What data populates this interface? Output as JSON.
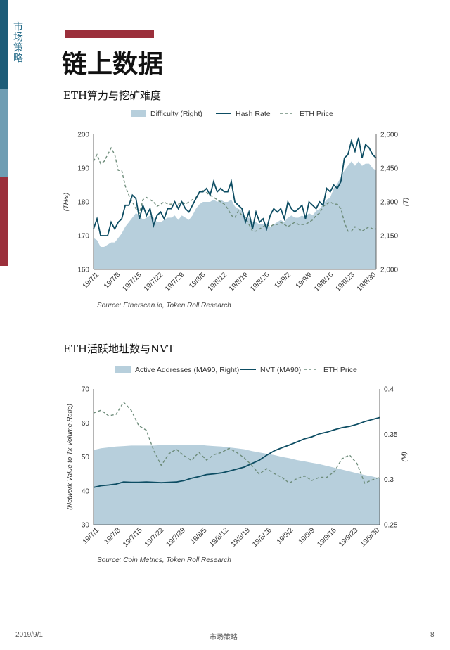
{
  "colors": {
    "bar_top": "#1d5c78",
    "bar_mid": "#6f9db3",
    "bar_bottom": "#9b2f3b",
    "accent": "#9b2f3b",
    "line_dark": "#0d4d63",
    "area": "#b7cfdc",
    "dashed": "#6d8c7a"
  },
  "sidebar": {
    "label": "市场策略"
  },
  "page": {
    "title": "链上数据"
  },
  "footer": {
    "date": "2019/9/1",
    "center": "市场策略",
    "page_number": "8"
  },
  "chart_data": [
    {
      "type": "line",
      "title": "ETH算力与挖矿难度",
      "legend": [
        "Difficulty (Right)",
        "Hash Rate",
        "ETH Price"
      ],
      "ylabel": "(TH/s)",
      "ylabel_right": "(T)",
      "ylim": [
        160,
        200
      ],
      "ylim_right": [
        2000,
        2600
      ],
      "yticks": [
        "200",
        "190",
        "180",
        "170",
        "160"
      ],
      "yticks_right": [
        "2,600",
        "2,450",
        "2,300",
        "2,150",
        "2,000"
      ],
      "xticks": [
        "19/7/1",
        "19/7/8",
        "19/7/15",
        "19/7/22",
        "19/7/29",
        "19/8/5",
        "19/8/12",
        "19/8/19",
        "19/8/26",
        "19/9/2",
        "19/9/9",
        "19/9/16",
        "19/9/23",
        "19/9/30"
      ],
      "source": "Source: Etherscan.io, Token Roll Research",
      "series": [
        {
          "name": "Hash Rate",
          "axis": "left",
          "values": [
            172,
            175,
            170,
            170,
            170,
            174,
            172,
            174,
            175,
            179,
            179,
            182,
            181,
            175,
            179,
            176,
            178,
            173,
            176,
            177,
            175,
            178,
            178,
            180,
            178,
            180,
            178,
            177,
            179,
            181,
            183,
            183,
            184,
            182,
            186,
            183,
            184,
            183,
            183,
            186,
            180,
            179,
            178,
            174,
            177,
            172,
            177,
            174,
            175,
            172,
            176,
            178,
            177,
            178,
            175,
            180,
            178,
            177,
            178,
            179,
            175,
            180,
            179,
            178,
            180,
            179,
            184,
            183,
            185,
            184,
            186,
            193,
            194,
            198,
            195,
            199,
            193,
            197,
            196,
            194,
            193
          ]
        },
        {
          "name": "Difficulty",
          "axis": "right",
          "values": [
            2140,
            2130,
            2100,
            2100,
            2110,
            2120,
            2120,
            2140,
            2160,
            2190,
            2210,
            2230,
            2250,
            2240,
            2220,
            2230,
            2240,
            2230,
            2210,
            2210,
            2220,
            2230,
            2230,
            2240,
            2220,
            2240,
            2230,
            2220,
            2240,
            2270,
            2290,
            2300,
            2300,
            2300,
            2310,
            2300,
            2310,
            2300,
            2300,
            2310,
            2280,
            2270,
            2260,
            2230,
            2230,
            2210,
            2210,
            2200,
            2200,
            2190,
            2190,
            2200,
            2210,
            2220,
            2210,
            2230,
            2240,
            2230,
            2230,
            2240,
            2230,
            2250,
            2240,
            2260,
            2270,
            2290,
            2310,
            2320,
            2360,
            2380,
            2410,
            2440,
            2460,
            2480,
            2460,
            2480,
            2460,
            2470,
            2470,
            2450,
            2440
          ]
        },
        {
          "name": "ETH Price",
          "axis": "right",
          "values": [
            2480,
            2510,
            2470,
            2480,
            2510,
            2540,
            2510,
            2440,
            2440,
            2370,
            2330,
            2300,
            2270,
            2250,
            2310,
            2320,
            2310,
            2300,
            2280,
            2290,
            2300,
            2290,
            2290,
            2300,
            2290,
            2300,
            2290,
            2300,
            2310,
            2320,
            2340,
            2350,
            2340,
            2330,
            2320,
            2310,
            2300,
            2290,
            2270,
            2240,
            2230,
            2260,
            2240,
            2230,
            2200,
            2170,
            2170,
            2180,
            2190,
            2200,
            2190,
            2200,
            2200,
            2210,
            2200,
            2190,
            2200,
            2210,
            2200,
            2200,
            2200,
            2210,
            2220,
            2240,
            2250,
            2280,
            2290,
            2300,
            2290,
            2290,
            2270,
            2210,
            2170,
            2170,
            2190,
            2180,
            2170,
            2180,
            2190,
            2180,
            2180
          ]
        }
      ]
    },
    {
      "type": "line",
      "title": "ETH活跃地址数与NVT",
      "legend": [
        "Active Addresses (MA90, Right)",
        "NVT (MA90)",
        "ETH Price"
      ],
      "ylabel": "(Network Value to Tx Volume Ratio)",
      "ylabel_right": "(M)",
      "ylim": [
        30,
        70
      ],
      "ylim_right": [
        0.25,
        0.4
      ],
      "yticks": [
        "70",
        "60",
        "50",
        "40",
        "30"
      ],
      "yticks_right": [
        "0.4",
        "0.35",
        "0.3",
        "0.25"
      ],
      "xticks": [
        "19/7/1",
        "19/7/8",
        "19/7/15",
        "19/7/22",
        "19/7/29",
        "19/8/5",
        "19/8/12",
        "19/8/19",
        "19/8/26",
        "19/9/2",
        "19/9/9",
        "19/9/16",
        "19/9/23",
        "19/9/30"
      ],
      "source": "Source: Coin Metrics, Token Roll Research",
      "series": [
        {
          "name": "NVT (MA90)",
          "axis": "left",
          "values": [
            41,
            41.5,
            41.7,
            42,
            42.6,
            42.5,
            42.5,
            42.6,
            42.5,
            42.4,
            42.5,
            42.6,
            43,
            43.7,
            44.2,
            44.8,
            45,
            45.3,
            45.8,
            46.4,
            47,
            48,
            49,
            50.5,
            51.8,
            52.7,
            53.5,
            54.4,
            55.3,
            55.9,
            56.8,
            57.3,
            58,
            58.6,
            59,
            59.6,
            60.4,
            61,
            61.6
          ]
        },
        {
          "name": "Active Addresses (MA90, Right)",
          "axis": "right",
          "values": [
            0.3325,
            0.3345,
            0.3355,
            0.3365,
            0.337,
            0.3375,
            0.3375,
            0.3375,
            0.3375,
            0.338,
            0.338,
            0.338,
            0.3385,
            0.3385,
            0.3385,
            0.3375,
            0.337,
            0.3365,
            0.3355,
            0.3345,
            0.3335,
            0.3315,
            0.33,
            0.3285,
            0.327,
            0.325,
            0.3235,
            0.3215,
            0.32,
            0.3185,
            0.317,
            0.315,
            0.313,
            0.311,
            0.309,
            0.307,
            0.305,
            0.3035,
            0.3015
          ]
        },
        {
          "name": "ETH Price",
          "axis": "right",
          "values": [
            0.3735,
            0.3765,
            0.3705,
            0.372,
            0.3855,
            0.3765,
            0.3595,
            0.3545,
            0.332,
            0.3155,
            0.3285,
            0.3335,
            0.3265,
            0.321,
            0.33,
            0.3215,
            0.3275,
            0.33,
            0.3345,
            0.33,
            0.324,
            0.316,
            0.306,
            0.312,
            0.3065,
            0.3025,
            0.296,
            0.301,
            0.304,
            0.299,
            0.3025,
            0.3025,
            0.309,
            0.323,
            0.327,
            0.3175,
            0.296,
            0.2995,
            0.3025
          ]
        }
      ]
    }
  ]
}
